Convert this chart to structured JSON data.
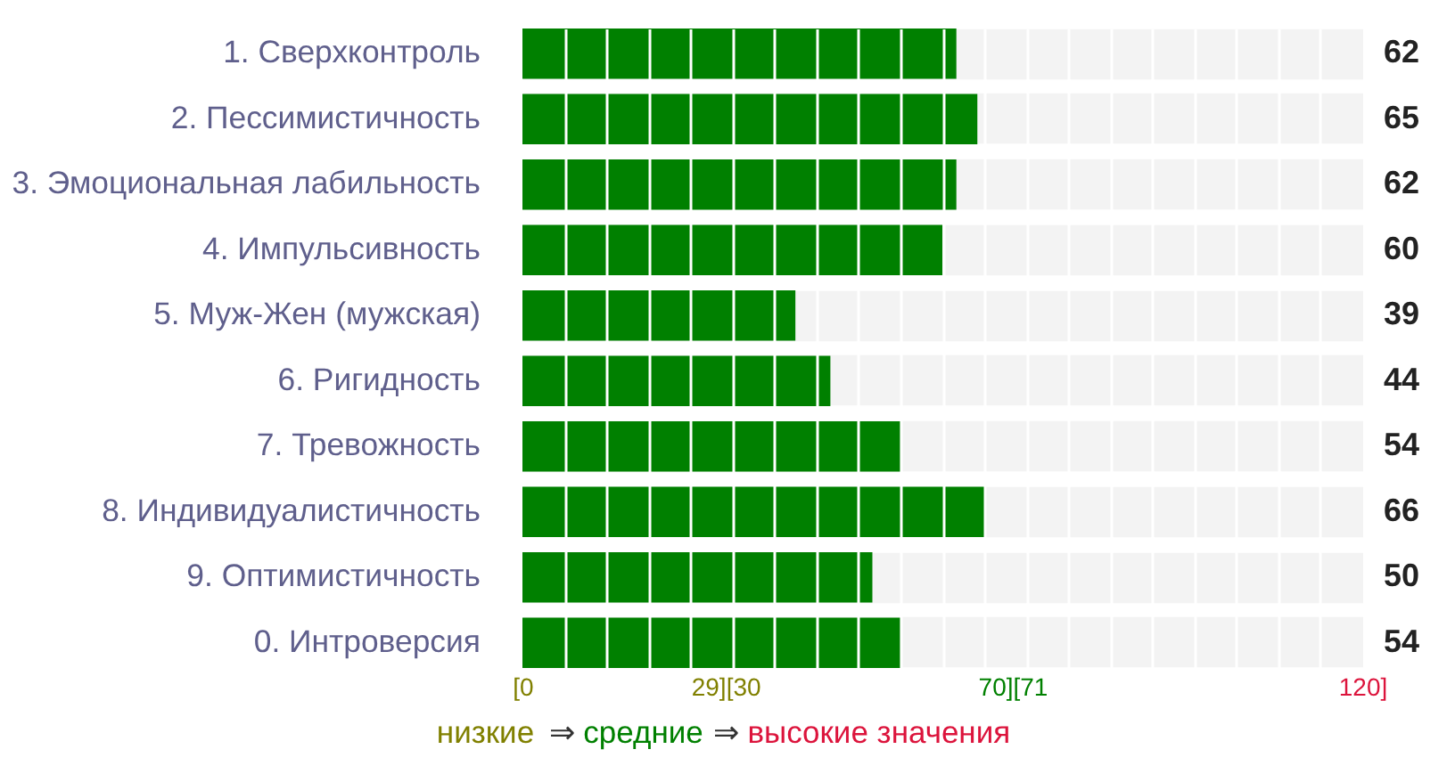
{
  "chart_data": {
    "type": "bar",
    "orientation": "horizontal",
    "categories": [
      "1. Сверхконтроль",
      "2. Пессимистичность",
      "3. Эмоциональная лабильность",
      "4. Импульсивность",
      "5. Муж-Жен (мужская)",
      "6. Ригидность",
      "7. Тревожность",
      "8. Индивидуалистичность",
      "9. Оптимистичность",
      "0. Интроверсия"
    ],
    "series": [
      {
        "color": "#008000",
        "values": [
          62,
          65,
          62,
          60,
          39,
          44,
          54,
          66,
          50,
          54
        ]
      }
    ],
    "xlim": [
      0,
      120
    ],
    "xticks": [
      {
        "value": 0,
        "label": "[0"
      },
      {
        "value": 6,
        "label": null
      },
      {
        "value": 12,
        "label": null
      },
      {
        "value": 18,
        "label": null
      },
      {
        "value": 24,
        "label": null
      },
      {
        "value": 29,
        "label": "29][30"
      },
      {
        "value": 30,
        "label": null
      },
      {
        "value": 36,
        "label": null
      },
      {
        "value": 42,
        "label": null
      },
      {
        "value": 48,
        "label": null
      },
      {
        "value": 54,
        "label": null
      },
      {
        "value": 60,
        "label": null
      },
      {
        "value": 66,
        "label": null
      },
      {
        "value": 70,
        "label": "70][71"
      },
      {
        "value": 72,
        "label": null
      },
      {
        "value": 78,
        "label": null
      },
      {
        "value": 84,
        "label": null
      },
      {
        "value": 90,
        "label": null
      },
      {
        "value": 96,
        "label": null
      },
      {
        "value": 102,
        "label": null
      },
      {
        "value": 108,
        "label": null
      },
      {
        "value": 114,
        "label": null
      },
      {
        "value": 120,
        "label": "120]"
      }
    ],
    "grid": true,
    "data_labels": true,
    "annotations": [
      "низкие",
      "⇒",
      "средние",
      "⇒",
      "высокие значения"
    ]
  }
}
